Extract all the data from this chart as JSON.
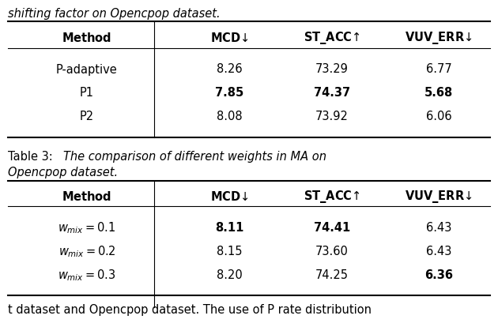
{
  "top_caption": "shifting factor on Opencpop dataset.",
  "table2_caption_prefix": "Table 3:",
  "table2_caption_body": "The comparison of different weights in MA on",
  "table2_caption_body2": "Opencpop dataset.",
  "table1_rows": [
    [
      "P-adaptive",
      "8.26",
      "73.29",
      "6.77"
    ],
    [
      "P1",
      "7.85",
      "74.37",
      "5.68"
    ],
    [
      "P2",
      "8.08",
      "73.92",
      "6.06"
    ]
  ],
  "table1_bold": [
    [
      false,
      false,
      false,
      false
    ],
    [
      false,
      true,
      true,
      true
    ],
    [
      false,
      false,
      false,
      false
    ]
  ],
  "table2_rows": [
    [
      "$w_{mix} = 0.1$",
      "8.11",
      "74.41",
      "6.43"
    ],
    [
      "$w_{mix} = 0.2$",
      "8.15",
      "73.60",
      "6.43"
    ],
    [
      "$w_{mix} = 0.3$",
      "8.20",
      "74.25",
      "6.36"
    ]
  ],
  "table2_bold": [
    [
      false,
      true,
      true,
      false
    ],
    [
      false,
      false,
      false,
      false
    ],
    [
      false,
      false,
      false,
      true
    ]
  ],
  "bottom_caption": "t dataset and Opencpop dataset. The use of P rate distribution",
  "bg_color": "#ffffff",
  "text_color": "#000000",
  "font_size": 10.5
}
